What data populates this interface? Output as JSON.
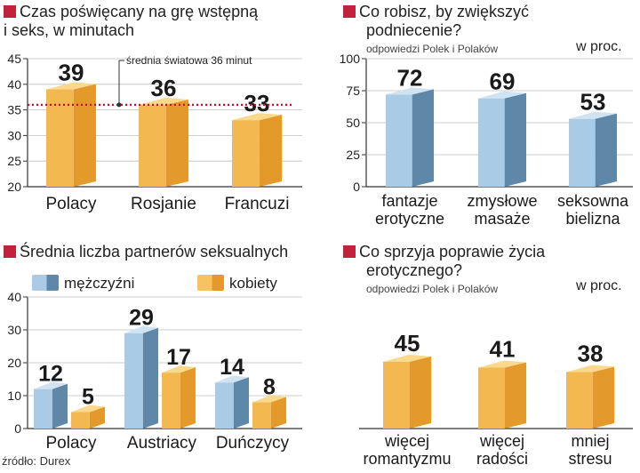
{
  "colors": {
    "orange_light": "#f7c35e",
    "orange_front": "#f3b84f",
    "orange_side": "#e39a2a",
    "orange_top": "#fbd98c",
    "blue_front": "#a9cbe6",
    "blue_side": "#5f87a8",
    "blue_top": "#cfe3f2",
    "title_square": "#c0233b",
    "average_line": "#c8102e",
    "grid": "#bfbfbf"
  },
  "panels": {
    "p1": {
      "title_line1": "Czas poświęcany na grę wstępną",
      "title_line2": "i seks, w minutach"
    },
    "p2": {
      "title_line1": "Co robisz, by zwiększyć",
      "title_line2": "podniecenie?",
      "subnote": "odpowiedzi Polek i Polaków",
      "unit": "w proc."
    },
    "p3": {
      "title_line1": "Średnia liczba partnerów seksualnych",
      "legend_men": "mężczyźni",
      "legend_women": "kobiety"
    },
    "p4": {
      "title_line1": "Co sprzyja poprawie życia",
      "title_line2": "erotycznego?",
      "subnote": "odpowiedzi Polek i Polaków",
      "unit": "w proc."
    }
  },
  "source": "źródło: Durex",
  "chart_data": [
    {
      "type": "bar",
      "title": "Czas poświęcany na grę wstępną i seks, w minutach",
      "categories": [
        "Polacy",
        "Rosjanie",
        "Francuzi"
      ],
      "values": [
        39,
        36,
        33
      ],
      "yticks": [
        20,
        25,
        30,
        35,
        40,
        45
      ],
      "ylim": [
        20,
        45
      ],
      "annotation": {
        "label": "średnia światowa 36 minut",
        "value": 36
      },
      "color": "orange"
    },
    {
      "type": "bar",
      "title": "Co robisz, by zwiększyć podniecenie?",
      "categories": [
        [
          "fantazje",
          "erotyczne"
        ],
        [
          "zmysłowe",
          "masaże"
        ],
        [
          "seksowna",
          "bielizna"
        ]
      ],
      "values": [
        72,
        69,
        53
      ],
      "yticks": [
        0,
        25,
        50,
        75,
        100
      ],
      "ylim": [
        0,
        100
      ],
      "color": "blue"
    },
    {
      "type": "bar",
      "title": "Średnia liczba partnerów seksualnych",
      "categories": [
        "Polacy",
        "Austriacy",
        "Duńczycy"
      ],
      "series": [
        {
          "name": "mężczyźni",
          "values": [
            12,
            29,
            14
          ],
          "color": "blue"
        },
        {
          "name": "kobiety",
          "values": [
            5,
            17,
            8
          ],
          "color": "orange"
        }
      ],
      "yticks": [
        0,
        10,
        20,
        30,
        40
      ],
      "ylim": [
        0,
        40
      ]
    },
    {
      "type": "bar",
      "title": "Co sprzyja poprawie życia erotycznego?",
      "categories": [
        [
          "więcej",
          "romantyzmu"
        ],
        [
          "więcej",
          "radości"
        ],
        [
          "mniej",
          "stresu"
        ]
      ],
      "values": [
        45,
        41,
        38
      ],
      "ylim": [
        0,
        100
      ],
      "color": "orange"
    }
  ]
}
